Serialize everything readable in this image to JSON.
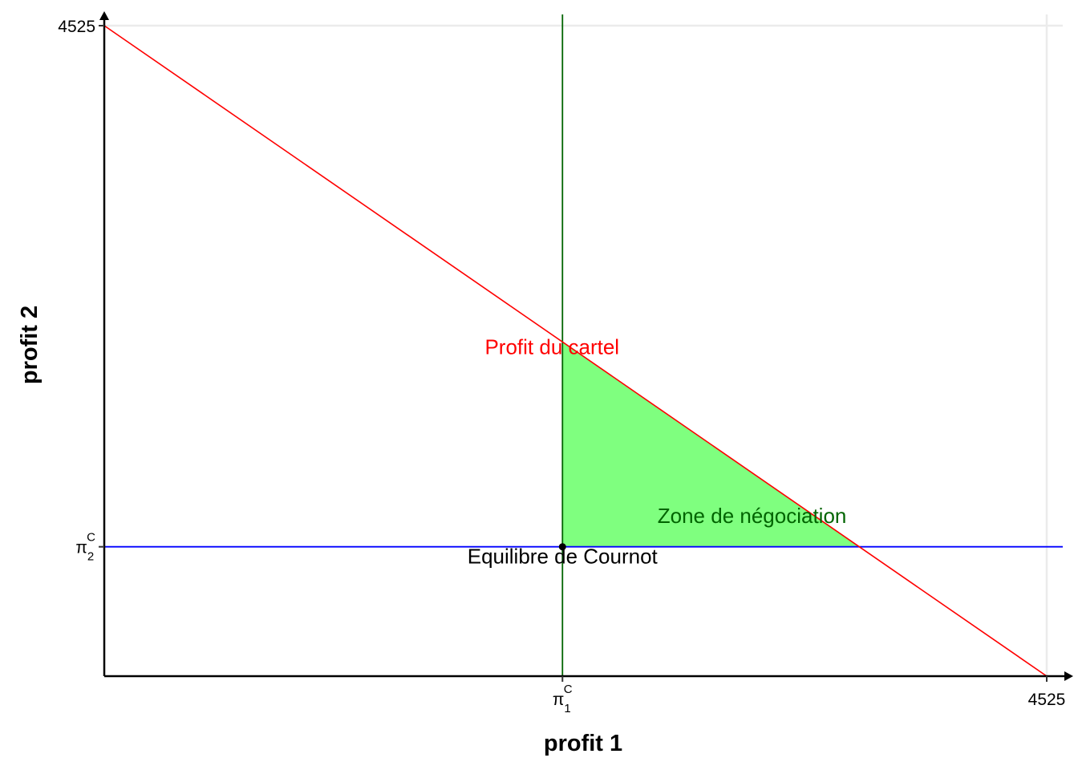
{
  "chart_data": {
    "type": "line",
    "title": "",
    "xlabel": "profit 1",
    "ylabel": "profit 2",
    "xlim": [
      0,
      4525
    ],
    "ylim": [
      0,
      4525
    ],
    "grid": true,
    "x_ticks": [
      {
        "value": 2200,
        "label": "π",
        "sub": "1",
        "sup": "C"
      },
      {
        "value": 4525,
        "label": "4525"
      }
    ],
    "y_ticks": [
      {
        "value": 900,
        "label": "π",
        "sub": "2",
        "sup": "C"
      },
      {
        "value": 4525,
        "label": "4525"
      }
    ],
    "cartel_line": {
      "x": [
        0,
        4525
      ],
      "y": [
        4525,
        0
      ],
      "color": "#FF0000"
    },
    "cournot": {
      "x": 2200,
      "y": 900
    },
    "h_line": {
      "y": 900,
      "color": "#0000FF"
    },
    "v_line": {
      "x": 2200,
      "color": "#006400"
    },
    "zone_fill": "#7FFF7F",
    "annotations": [
      {
        "text": "Profit du cartel",
        "x": 2150,
        "y": 2240,
        "color": "#FF0000",
        "anchor": "middle"
      },
      {
        "text": "Zone de négociation",
        "x": 3110,
        "y": 1065,
        "color": "#006400",
        "anchor": "middle"
      },
      {
        "text": "Equilibre de Cournot",
        "x": 2200,
        "y": 785,
        "color": "#000000",
        "anchor": "middle"
      }
    ]
  }
}
